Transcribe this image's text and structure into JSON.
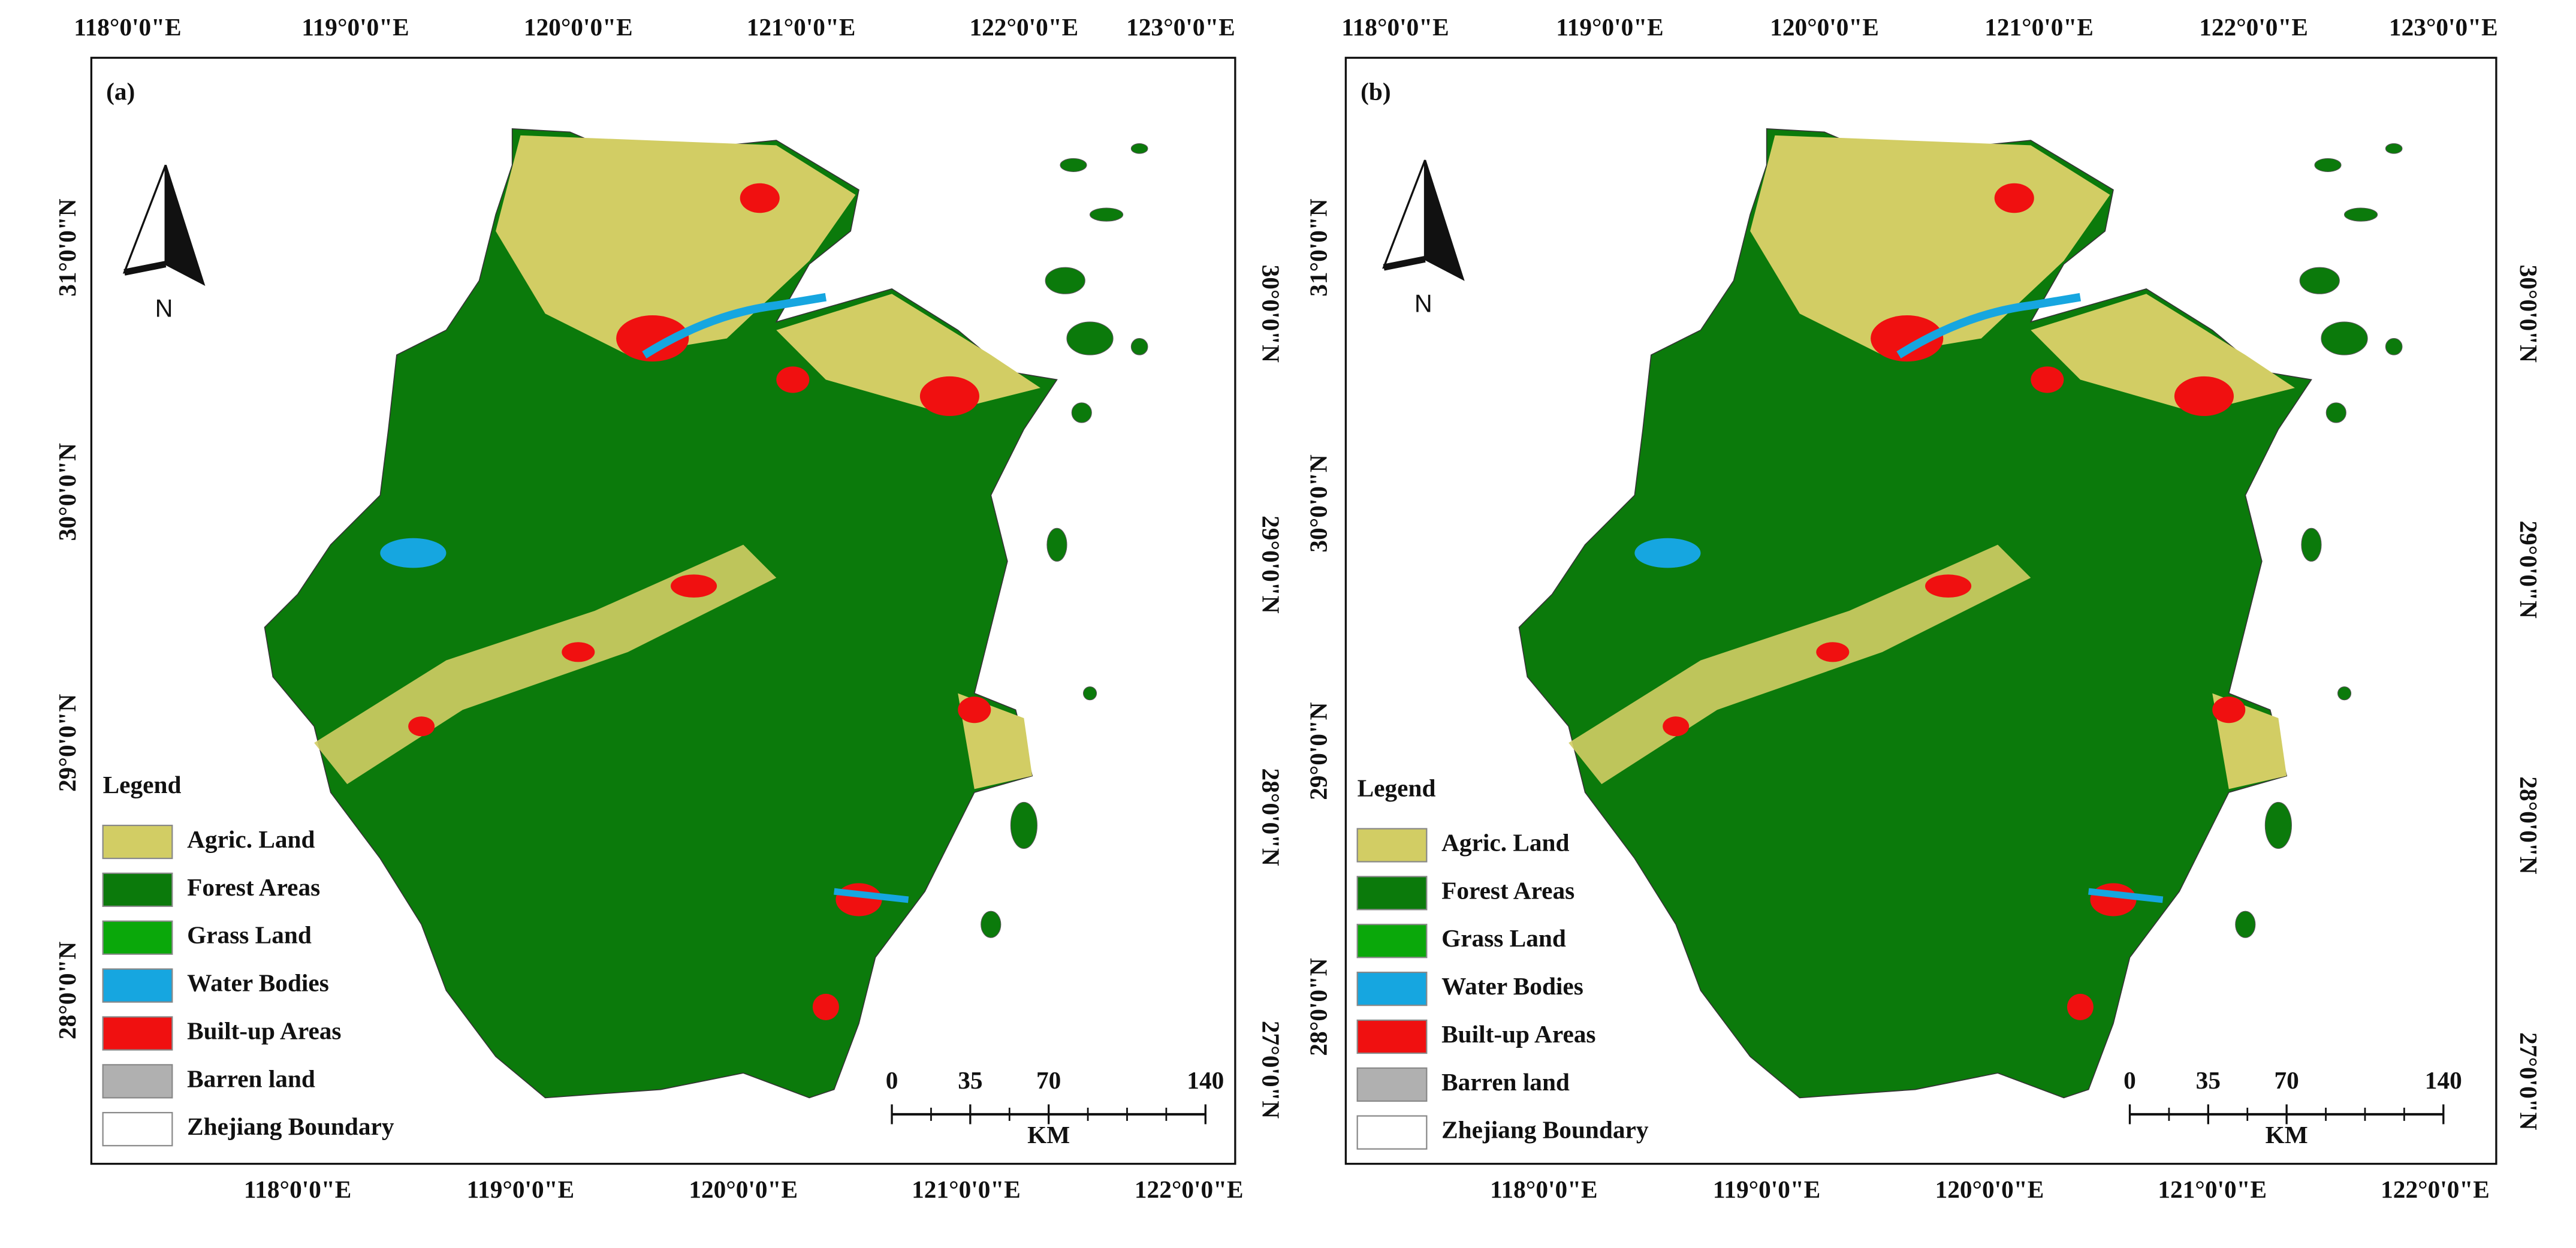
{
  "panels": [
    {
      "label": "(a)",
      "top_labels": [
        "118°0'0\"E",
        "119°0'0\"E",
        "120°0'0\"E",
        "121°0'0\"E",
        "122°0'0\"E",
        "123°0'0\"E"
      ],
      "bottom_labels": [
        "118°0'0\"E",
        "119°0'0\"E",
        "120°0'0\"E",
        "121°0'0\"E",
        "122°0'0\"E"
      ],
      "left_labels": [
        "31°0'0\"N",
        "30°0'0\"N",
        "29°0'0\"N",
        "28°0'0\"N"
      ],
      "right_labels": [
        "30°0'0\"N",
        "29°0'0\"N",
        "28°0'0\"N",
        "27°0'0\"N"
      ],
      "north": "N",
      "legend": {
        "title": "Legend",
        "items": [
          {
            "label": "Agric. Land",
            "color": "#d2cd64"
          },
          {
            "label": "Forest Areas",
            "color": "#0b7a0b"
          },
          {
            "label": "Grass Land",
            "color": "#0aa80a"
          },
          {
            "label": "Water Bodies",
            "color": "#16a6e0"
          },
          {
            "label": "Built-up Areas",
            "color": "#f01010"
          },
          {
            "label": "Barren land",
            "color": "#b0b0b0"
          },
          {
            "label": "Zhejiang Boundary",
            "color": "#ffffff"
          }
        ]
      },
      "scale_bar": {
        "ticks": [
          0,
          35,
          70,
          140
        ],
        "unit": "KM"
      }
    },
    {
      "label": "(b)",
      "top_labels": [
        "118°0'0\"E",
        "119°0'0\"E",
        "120°0'0\"E",
        "121°0'0\"E",
        "122°0'0\"E",
        "123°0'0\"E"
      ],
      "bottom_labels": [
        "118°0'0\"E",
        "119°0'0\"E",
        "120°0'0\"E",
        "121°0'0\"E",
        "122°0'0\"E"
      ],
      "left_labels": [
        "31°0'0\"N",
        "30°0'0\"N",
        "29°0'0\"N",
        "28°0'0\"N"
      ],
      "right_labels": [
        "30°0'0\"N",
        "29°0'0\"N",
        "28°0'0\"N",
        "27°0'0\"N"
      ],
      "north": "N",
      "legend": {
        "title": "Legend",
        "items": [
          {
            "label": "Agric. Land",
            "color": "#d2cd64"
          },
          {
            "label": "Forest Areas",
            "color": "#0b7a0b"
          },
          {
            "label": "Grass Land",
            "color": "#0aa80a"
          },
          {
            "label": "Water Bodies",
            "color": "#16a6e0"
          },
          {
            "label": "Built-up Areas",
            "color": "#f01010"
          },
          {
            "label": "Barren land",
            "color": "#b0b0b0"
          },
          {
            "label": "Zhejiang Boundary",
            "color": "#ffffff"
          }
        ]
      },
      "scale_bar": {
        "ticks": [
          0,
          35,
          70,
          140
        ],
        "unit": "KM"
      }
    }
  ]
}
